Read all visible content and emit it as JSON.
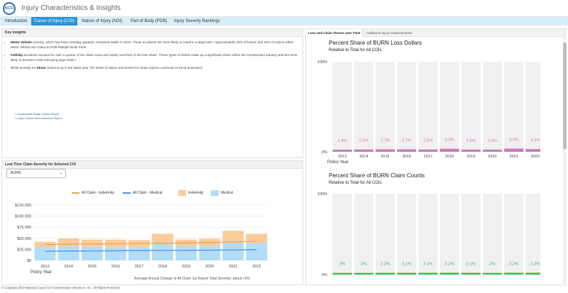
{
  "app": {
    "title": "Injury Characteristics & Insights",
    "logo_text": "NCCI"
  },
  "tabs": [
    {
      "label": "Introduction"
    },
    {
      "label": "Cause of Injury (COI)"
    },
    {
      "label": "Nature of Injury (NOI)"
    },
    {
      "label": "Part of Body (POB)"
    },
    {
      "label": "Injury Severity Rankings"
    }
  ],
  "insights": {
    "header": "Key Insights",
    "b1_bold": "Motor Vehicle",
    "b1_text": " severity, which has been trending upwards, remained stable in 2022. These accidents are more likely to result in a large loss.¹ Approximately 40% of losses and 30% of claims within Motor Vehicle are coded to POB Multiple Body Parts.",
    "b2_bold": "Fall/slip",
    "b2_text": " accidents account for over a quarter of the claim count and nearly one-third of the loss share. These types of claims make up a significant share within the Construction industry and are more likely to become a fast-emerging large claim.²",
    "b3_text_a": "While severity for ",
    "b3_bold": "Strain",
    "b3_text_b": " claims is up in the latest year, the share of claims and losses for Strain injuries continues to trend downward.",
    "fn1": "¹ Countrywide Wage Claims Report",
    "fn2": "² Large Claims Deconstructed Report"
  },
  "severity": {
    "header": "Lost-Time Claim Severity for Selected COI",
    "selected": "BURN",
    "legend": {
      "indemnity_line": "All Claim - Indemnity",
      "medical_line": "All Claim - Medical",
      "indemnity_bar": "Indemnity",
      "medical_bar": "Medical"
    },
    "colors": {
      "indemnity_line": "#f0a04b",
      "medical_line": "#4a90d9",
      "indemnity_bar": "#f9cc9a",
      "medical_bar": "#b3dcf8"
    },
    "xlabel": "Policy Year",
    "footer": "Average Annual Change in All Claim 1st Report Total Severity: about +2%"
  },
  "right_tabs": [
    {
      "label": "Loss and Claim Shares over Time"
    },
    {
      "label": "Additional Injury Characteristics"
    }
  ],
  "loss_chart_text": {
    "title": "Percent Share of BURN Loss Dollars",
    "subtitle": "Relative to Total for All COIs",
    "xlabel": "Policy Year"
  },
  "count_chart_text": {
    "title": "Percent Share of BURN Claim Counts",
    "subtitle": "Relative to Total for All COIs"
  },
  "copyright": "© Copyright 2024-National Council on Compensation Insurance, Inc., All Rights Reserved.",
  "chart_data": [
    {
      "type": "bar",
      "title": "",
      "xlabel": "Policy Year",
      "ylabel": "",
      "categories": [
        "2013",
        "2014",
        "2015",
        "2016",
        "2017",
        "2018",
        "2019",
        "2020",
        "2021",
        "2022"
      ],
      "ylim": [
        0,
        125000
      ],
      "yticks": [
        "$0",
        "$25,000",
        "$50,000",
        "$75,000",
        "$100,000",
        "$125,000"
      ],
      "stacked": true,
      "series": [
        {
          "name": "Medical",
          "kind": "bar",
          "values": [
            29000,
            32000,
            31000,
            30000,
            30000,
            36000,
            32000,
            32000,
            40000,
            39000
          ]
        },
        {
          "name": "Indemnity",
          "kind": "bar",
          "values": [
            13000,
            18000,
            16000,
            17000,
            16000,
            24000,
            15000,
            17000,
            27000,
            21000
          ]
        },
        {
          "name": "All Claim - Indemnity",
          "kind": "line",
          "values": [
            36000,
            36500,
            37000,
            37500,
            38000,
            38500,
            39500,
            40500,
            41500,
            43000
          ]
        },
        {
          "name": "All Claim - Medical",
          "kind": "line",
          "values": [
            20500,
            21000,
            21300,
            21600,
            22000,
            22300,
            22600,
            23000,
            23400,
            24000
          ]
        }
      ],
      "grid": true,
      "legend": "top"
    },
    {
      "type": "bar",
      "title": "Percent Share of BURN Loss Dollars",
      "subtitle": "Relative to Total for All COIs",
      "xlabel": "Policy Year",
      "categories": [
        "2013",
        "2014",
        "2015",
        "2016",
        "2017",
        "2018",
        "2019",
        "2020",
        "2021",
        "2022"
      ],
      "values": [
        2.4,
        2.6,
        2.7,
        2.7,
        2.6,
        3.4,
        2.5,
        2.5,
        3.6,
        3.1
      ],
      "labels": [
        "2.4%",
        "2.6%",
        "2.7%",
        "2.7%",
        "2.6%",
        "3.4%",
        "2.5%",
        "2.5%",
        "3.6%",
        "3.1%"
      ],
      "ylim": [
        0,
        100
      ],
      "yticks": [
        "0%",
        "100%"
      ],
      "color": "#c77dbb"
    },
    {
      "type": "bar",
      "title": "Percent Share of BURN Claim Counts",
      "subtitle": "Relative to Total for All COIs",
      "xlabel": "Policy Year",
      "categories": [
        "2013",
        "2014",
        "2015",
        "2016",
        "2017",
        "2018",
        "2019",
        "2020",
        "2021",
        "2022"
      ],
      "values": [
        2,
        2,
        2.1,
        2.1,
        2.1,
        2.2,
        2.1,
        2,
        2.2,
        2.2
      ],
      "labels": [
        "2%",
        "2%",
        "2.1%",
        "2.1%",
        "2.1%",
        "2.2%",
        "2.1%",
        "2%",
        "2.2%",
        "2.2%"
      ],
      "ylim": [
        0,
        100
      ],
      "yticks": [
        "0%",
        "100%"
      ],
      "color": "#3cb94a"
    }
  ]
}
